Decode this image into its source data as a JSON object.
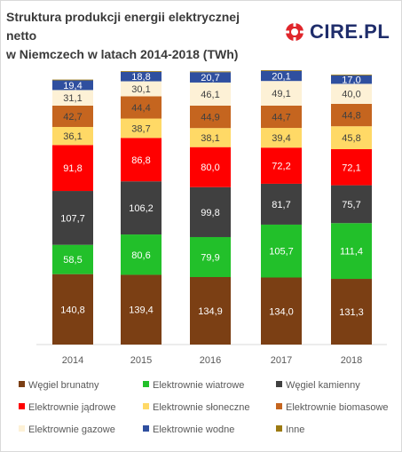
{
  "title": {
    "line1": "Struktura produkcji energii elektrycznej netto",
    "line2": "w Niemczech w latach 2014-2018 (TWh)"
  },
  "logo": {
    "text": "CIRE.PL"
  },
  "chart_data": {
    "type": "bar",
    "stacked": true,
    "categories": [
      "2014",
      "2015",
      "2016",
      "2017",
      "2018"
    ],
    "series": [
      {
        "name": "Węgiel brunatny",
        "color": "#7b3f14",
        "values": [
          140.8,
          139.4,
          134.9,
          134.0,
          131.3
        ],
        "labels": [
          "140,8",
          "139,4",
          "134,9",
          "134,0",
          "131,3"
        ]
      },
      {
        "name": "Elektrownie wiatrowe",
        "color": "#22c02a",
        "values": [
          58.5,
          80.6,
          79.9,
          105.7,
          111.4
        ],
        "labels": [
          "58,5",
          "80,6",
          "79,9",
          "105,7",
          "111,4"
        ]
      },
      {
        "name": "Węgiel kamienny",
        "color": "#404040",
        "values": [
          107.7,
          106.2,
          99.8,
          81.7,
          75.7
        ],
        "labels": [
          "107,7",
          "106,2",
          "99,8",
          "81,7",
          "75,7"
        ]
      },
      {
        "name": "Elektrownie jądrowe",
        "color": "#ff0000",
        "values": [
          91.8,
          86.8,
          80.0,
          72.2,
          72.1
        ],
        "labels": [
          "91,8",
          "86,8",
          "80,0",
          "72,2",
          "72,1"
        ]
      },
      {
        "name": "Elektrownie słoneczne",
        "color": "#ffd966",
        "values": [
          36.1,
          38.7,
          38.1,
          39.4,
          45.8
        ],
        "labels": [
          "36,1",
          "38,7",
          "38,1",
          "39,4",
          "45,8"
        ]
      },
      {
        "name": "Elektrownie biomasowe",
        "color": "#c5651f",
        "values": [
          42.7,
          44.4,
          44.9,
          44.7,
          44.8
        ],
        "labels": [
          "42,7",
          "44,4",
          "44,9",
          "44,7",
          "44,8"
        ]
      },
      {
        "name": "Elektrownie gazowe",
        "color": "#fdf1d6",
        "values": [
          31.1,
          30.1,
          46.1,
          49.1,
          40.0
        ],
        "labels": [
          "31,1",
          "30,1",
          "46,1",
          "49,1",
          "40,0"
        ]
      },
      {
        "name": "Elektrownie wodne",
        "color": "#2f4f9f",
        "values": [
          19.4,
          18.8,
          20.7,
          20.1,
          17.0
        ],
        "labels": [
          "19,4",
          "18,8",
          "20,7",
          "20,1",
          "17,0"
        ]
      },
      {
        "name": "Inne",
        "color": "#9c7a12",
        "values": [
          1.5,
          1.5,
          1.5,
          1.5,
          1.5
        ],
        "labels": [
          "",
          "",
          "",
          "",
          ""
        ]
      }
    ],
    "label_colors": [
      "#ffffff",
      "#ffffff",
      "#ffffff",
      "#ffffff",
      "#404040",
      "#404040",
      "#404040",
      "#ffffff",
      "#ffffff"
    ],
    "gridlines": false,
    "legend_position": "bottom"
  }
}
